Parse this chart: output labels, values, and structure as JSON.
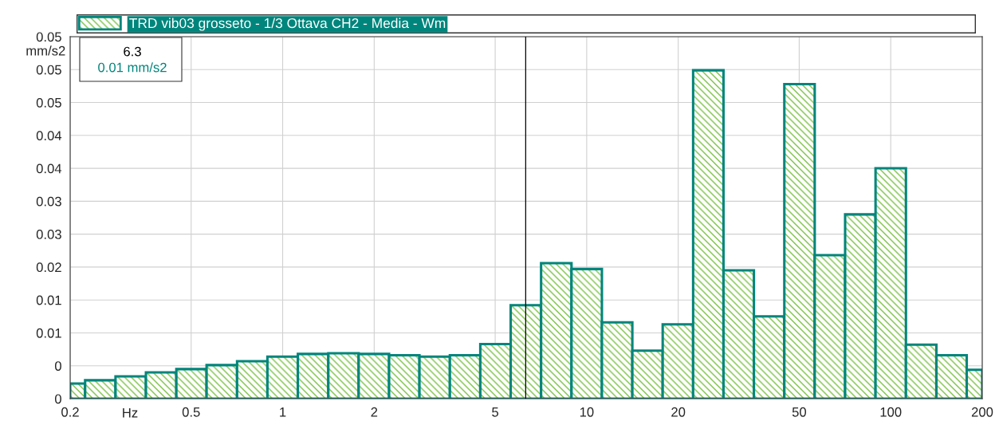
{
  "chart_data": {
    "type": "histogram",
    "xlabel": "Hz",
    "ylabel": "mm/s2",
    "bins": [
      0.2,
      0.224,
      0.282,
      0.355,
      0.447,
      0.562,
      0.708,
      0.891,
      1.122,
      1.413,
      1.778,
      2.239,
      2.818,
      3.548,
      4.467,
      5.623,
      7.079,
      8.913,
      11.22,
      14.13,
      17.78,
      22.39,
      28.18,
      35.48,
      44.67,
      56.23,
      70.79,
      89.13,
      112.2,
      141.3,
      177.8,
      200
    ],
    "series": [
      {
        "name": "TRD vib03 grosseto - 1/3 Ottava CH2 - Media - Wm",
        "color": "#00857c",
        "values": [
          0.0023,
          0.0028,
          0.0034,
          0.004,
          0.0045,
          0.0051,
          0.0057,
          0.0064,
          0.0068,
          0.0069,
          0.0068,
          0.0066,
          0.0064,
          0.0066,
          0.0083,
          0.0142,
          0.0206,
          0.0197,
          0.0116,
          0.0073,
          0.0113,
          0.0499,
          0.0195,
          0.0125,
          0.0478,
          0.0218,
          0.028,
          0.035,
          0.0082,
          0.0066,
          0.0044
        ]
      }
    ],
    "log": "x",
    "xlim": [
      0.2,
      200
    ],
    "xticks": [
      0.2,
      0.5,
      1,
      2,
      5,
      10,
      20,
      50,
      100,
      200
    ],
    "ylim": [
      0,
      0.055
    ],
    "yticks": [
      0,
      {
        "value": 0.005,
        "label": "0"
      },
      0.01,
      {
        "value": 0.015,
        "label": "0.01"
      },
      0.02,
      {
        "value": 0.025,
        "label": "0.03"
      },
      0.03,
      {
        "value": 0.035,
        "label": "0.04"
      },
      0.04,
      {
        "value": 0.045,
        "label": "0.05"
      },
      0.05,
      {
        "value": 0.055,
        "label": "0.05"
      }
    ],
    "grid": true,
    "legend": "top",
    "ref_lines": [
      {
        "axis": "x",
        "value": 6.3,
        "label": "6.3",
        "color": "#000000"
      }
    ],
    "annotations": [
      "0.01 mm/s2"
    ]
  }
}
